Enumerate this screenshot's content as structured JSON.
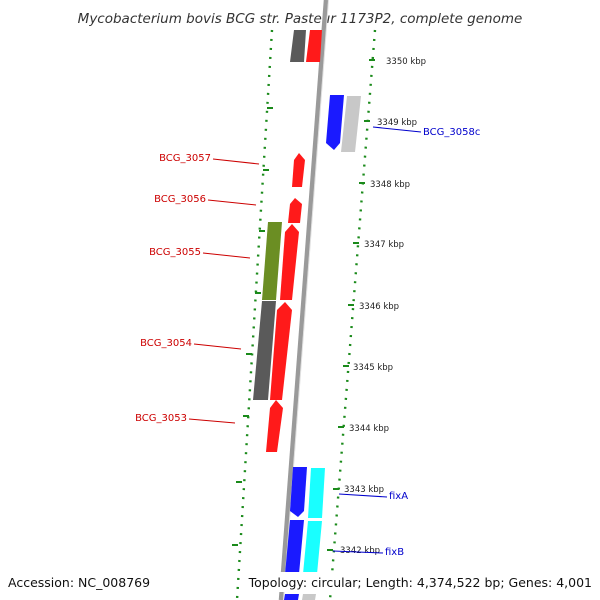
{
  "title": "Mycobacterium bovis BCG str. Pasteur 1173P2, complete genome",
  "footer": {
    "accession": "Accession: NC_008769",
    "stats": "Topology: circular; Length: 4,374,522 bp; Genes: 4,001"
  },
  "colors": {
    "red": "#ff1a1a",
    "blue": "#1a1aff",
    "cyan": "#19ffff",
    "olive": "#6b8e23",
    "dark_gray": "#5a5a5a",
    "light_gray": "#c8c8c8",
    "ruler_green": "#1a8a1a",
    "label_red": "#cc0000",
    "label_blue": "#0000cc"
  },
  "kbp_ticks": [
    {
      "label": "3350 kbp"
    },
    {
      "label": "3349 kbp"
    },
    {
      "label": "3348 kbp"
    },
    {
      "label": "3347 kbp"
    },
    {
      "label": "3346 kbp"
    },
    {
      "label": "3345 kbp"
    },
    {
      "label": "3344 kbp"
    },
    {
      "label": "3343 kbp"
    },
    {
      "label": "3342 kbp"
    }
  ],
  "left_labels": [
    {
      "text": "BCG_3057"
    },
    {
      "text": "BCG_3056"
    },
    {
      "text": "BCG_3055"
    },
    {
      "text": "BCG_3054"
    },
    {
      "text": "BCG_3053"
    }
  ],
  "right_labels": [
    {
      "text": "BCG_3058c"
    },
    {
      "text": "fixA"
    },
    {
      "text": "fixB"
    }
  ]
}
